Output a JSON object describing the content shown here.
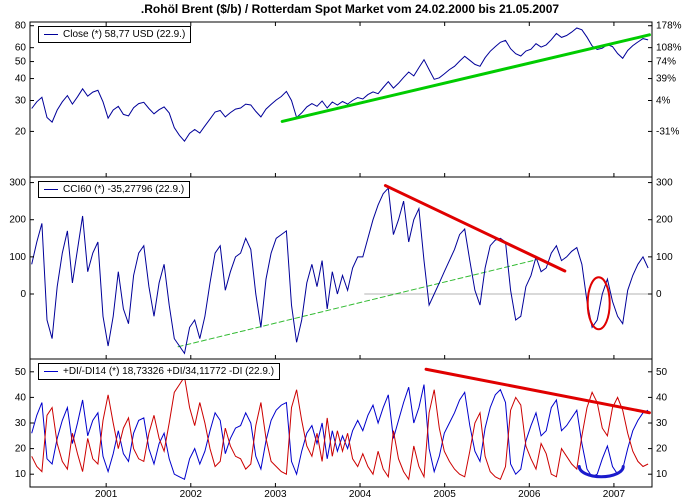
{
  "chart_data": {
    "type": "line",
    "title": ".Rohöl Brent ($/b) / Rotterdam Spot Market vom 24.02.2000 bis 21.05.2007",
    "x": {
      "start": 2000.12,
      "step": 0.0602,
      "ticks": [
        2001,
        2002,
        2003,
        2004,
        2005,
        2006,
        2007
      ]
    },
    "panels": [
      {
        "name": "price",
        "legend": "Close (*) 58,77 USD (22.9.)",
        "scale": "log",
        "ylim": [
          11,
          84
        ],
        "yticks": [
          {
            "v": 80,
            "left": "80",
            "right": "178%"
          },
          {
            "v": 60,
            "left": "60",
            "right": "108%"
          },
          {
            "v": 50,
            "left": "50",
            "right": "74%"
          },
          {
            "v": 40,
            "left": "40",
            "right": "39%"
          },
          {
            "v": 30,
            "left": "30",
            "right": "4%"
          },
          {
            "v": 20,
            "left": "20",
            "right": "-31%"
          }
        ],
        "series": [
          {
            "name": "Close",
            "color": "#000099",
            "values": [
              27.0,
              29.5,
              31.3,
              24.0,
              22.6,
              26.5,
              29.5,
              32.0,
              28.6,
              31.5,
              35.0,
              31.8,
              33.5,
              34.3,
              29.5,
              23.8,
              26.5,
              27.8,
              25.0,
              24.5,
              27.3,
              28.8,
              29.3,
              27.0,
              25.2,
              26.6,
              27.6,
              25.5,
              21.0,
              19.0,
              17.6,
              19.5,
              20.5,
              19.6,
              21.5,
              23.5,
              25.8,
              26.3,
              24.2,
              25.6,
              26.8,
              27.2,
              28.6,
              28.3,
              26.0,
              24.2,
              26.8,
              28.5,
              30.2,
              31.6,
              33.8,
              30.0,
              24.0,
              25.5,
              27.6,
              28.8,
              27.8,
              29.8,
              27.2,
              29.4,
              28.3,
              29.6,
              28.6,
              30.0,
              31.2,
              30.6,
              32.4,
              33.6,
              32.8,
              35.6,
              38.4,
              35.3,
              37.6,
              40.6,
              43.6,
              41.4,
              46.2,
              51.2,
              45.0,
              39.6,
              40.4,
              42.5,
              45.0,
              47.0,
              50.3,
              53.6,
              50.8,
              48.2,
              47.0,
              52.6,
              57.2,
              60.8,
              64.4,
              66.0,
              59.2,
              55.4,
              53.8,
              57.4,
              58.8,
              63.2,
              60.4,
              62.2,
              66.6,
              72.2,
              68.6,
              70.4,
              73.6,
              77.6,
              75.8,
              68.8,
              61.4,
              58.6,
              59.6,
              62.4,
              60.8,
              55.6,
              52.2,
              57.8,
              61.6,
              64.6,
              67.6,
              66.4
            ]
          }
        ],
        "trendlines": [
          {
            "name": "green-uptrend",
            "color": "#00cc00",
            "width": 3,
            "from": [
              2003.08,
              22.8
            ],
            "to": [
              2007.42,
              71
            ]
          }
        ]
      },
      {
        "name": "cci",
        "legend": "CCI60 (*) -35,27796 (22.9.)",
        "scale": "linear",
        "ylim": [
          -175,
          315
        ],
        "yticks": [
          {
            "v": 300,
            "left": "300",
            "right": "300"
          },
          {
            "v": 200,
            "left": "200",
            "right": "200"
          },
          {
            "v": 100,
            "left": "100",
            "right": "100"
          },
          {
            "v": 0,
            "left": "0",
            "right": "0"
          }
        ],
        "series": [
          {
            "name": "CCI60",
            "color": "#000099",
            "values": [
              80,
              140,
              190,
              -70,
              -120,
              20,
              110,
              170,
              30,
              120,
              210,
              60,
              110,
              140,
              -60,
              -140,
              -60,
              60,
              -40,
              -80,
              50,
              110,
              130,
              20,
              -60,
              30,
              80,
              -30,
              -120,
              -140,
              -160,
              -90,
              -70,
              -120,
              -60,
              30,
              110,
              130,
              10,
              60,
              100,
              110,
              150,
              120,
              0,
              -90,
              40,
              110,
              150,
              160,
              170,
              -30,
              -130,
              -70,
              30,
              80,
              20,
              90,
              -40,
              60,
              0,
              50,
              10,
              70,
              100,
              100,
              150,
              200,
              240,
              270,
              285,
              160,
              200,
              250,
              140,
              200,
              230,
              90,
              -30,
              0,
              30,
              60,
              90,
              120,
              160,
              175,
              90,
              10,
              -30,
              70,
              130,
              145,
              150,
              140,
              10,
              -70,
              -60,
              20,
              50,
              100,
              60,
              70,
              110,
              130,
              90,
              100,
              115,
              125,
              80,
              -20,
              -90,
              -70,
              0,
              40,
              -20,
              -60,
              -80,
              10,
              50,
              80,
              100,
              70
            ]
          }
        ],
        "reflines": [
          {
            "v": 0,
            "from": 2004.05,
            "to": 2007.45,
            "color": "#b3b3b3",
            "width": 1
          }
        ],
        "trendlines": [
          {
            "name": "green-dashed-support",
            "color": "#33bb33",
            "width": 1,
            "dash": "5,3",
            "from": [
              2001.85,
              -142
            ],
            "to": [
              2006.08,
              92
            ]
          },
          {
            "name": "red-downtrend",
            "color": "#e00000",
            "width": 3,
            "from": [
              2004.3,
              292
            ],
            "to": [
              2006.42,
              62
            ]
          }
        ],
        "annotations": [
          {
            "type": "ellipse",
            "color": "#e00000",
            "width": 2,
            "cx": 2006.82,
            "cy": -25,
            "rx": 0.13,
            "ry": 70
          }
        ]
      },
      {
        "name": "di",
        "legend": "+DI/-DI14 (*) 18,73326 +DI/34,11772 -DI (22.9.)",
        "scale": "linear",
        "ylim": [
          5,
          55
        ],
        "yticks": [
          {
            "v": 50,
            "left": "50",
            "right": "50"
          },
          {
            "v": 40,
            "left": "40",
            "right": "40"
          },
          {
            "v": 30,
            "left": "30",
            "right": "30"
          },
          {
            "v": 20,
            "left": "20",
            "right": "20"
          },
          {
            "v": 10,
            "left": "10",
            "right": "10"
          }
        ],
        "series": [
          {
            "name": "+DI",
            "color": "#0000cc",
            "values": [
              26,
              33,
              38,
              16,
              14,
              24,
              31,
              36,
              22,
              30,
              39,
              25,
              31,
              34,
              17,
              11,
              18,
              27,
              18,
              15,
              26,
              31,
              32,
              20,
              14,
              22,
              26,
              16,
              10,
              9,
              8,
              16,
              20,
              14,
              19,
              27,
              34,
              31,
              18,
              24,
              28,
              29,
              34,
              30,
              17,
              12,
              23,
              31,
              35,
              37,
              38,
              15,
              10,
              19,
              26,
              29,
              22,
              30,
              16,
              27,
              19,
              25,
              20,
              27,
              31,
              27,
              33,
              37,
              30,
              36,
              41,
              24,
              31,
              38,
              44,
              30,
              36,
              45,
              20,
              11,
              17,
              26,
              30,
              34,
              39,
              42,
              29,
              19,
              15,
              28,
              36,
              41,
              43,
              38,
              14,
              10,
              12,
              23,
              29,
              34,
              25,
              27,
              36,
              39,
              27,
              29,
              32,
              35,
              22,
              12,
              9,
              10,
              16,
              21,
              13,
              10,
              12,
              20,
              27,
              31,
              34,
              35
            ]
          },
          {
            "name": "-DI",
            "color": "#cc0000",
            "values": [
              17,
              13,
              11,
              33,
              36,
              22,
              15,
              12,
              26,
              18,
              11,
              24,
              16,
              14,
              31,
              41,
              30,
              20,
              28,
              32,
              20,
              16,
              15,
              26,
              33,
              24,
              19,
              30,
              42,
              45,
              48,
              36,
              29,
              38,
              30,
              20,
              13,
              15,
              28,
              21,
              17,
              16,
              12,
              14,
              29,
              38,
              24,
              15,
              13,
              11,
              10,
              36,
              43,
              31,
              21,
              17,
              26,
              15,
              32,
              17,
              27,
              19,
              26,
              16,
              13,
              18,
              13,
              10,
              19,
              12,
              9,
              27,
              16,
              11,
              8,
              21,
              13,
              9,
              34,
              43,
              28,
              19,
              15,
              12,
              10,
              9,
              19,
              30,
              34,
              17,
              11,
              9,
              8,
              13,
              35,
              40,
              37,
              21,
              16,
              12,
              22,
              18,
              10,
              9,
              20,
              17,
              14,
              12,
              25,
              36,
              42,
              38,
              28,
              25,
              36,
              40,
              35,
              26,
              19,
              15,
              13,
              14
            ]
          }
        ],
        "trendlines": [
          {
            "name": "red-downtrend",
            "color": "#e00000",
            "width": 3,
            "from": [
              2004.78,
              51
            ],
            "to": [
              2007.42,
              34
            ]
          }
        ],
        "annotations": [
          {
            "type": "arc-bottom",
            "color": "#1a1acc",
            "width": 3,
            "cx": 2006.85,
            "cy": 13,
            "rx": 0.26,
            "ry": 4
          }
        ]
      }
    ]
  }
}
